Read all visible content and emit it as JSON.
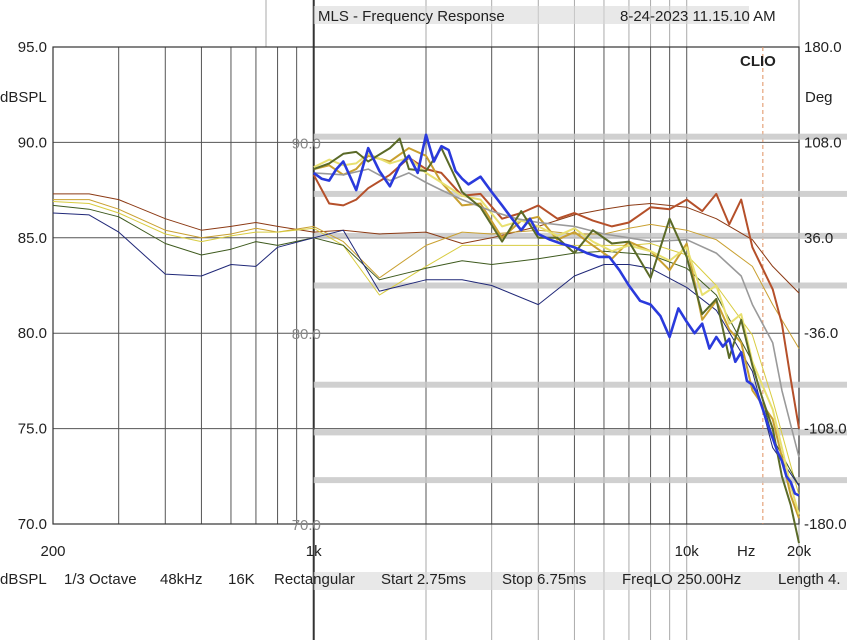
{
  "header": {
    "title": "MLS - Frequency Response",
    "timestamp": "8-24-2023 11.15.10 AM",
    "brand": "CLIO"
  },
  "footer": {
    "unit": "dBSPL",
    "smoothing": "1/3 Octave",
    "rate": "48kHz",
    "size": "16K",
    "window": "Rectangular",
    "start": "Start 2.75ms",
    "stop": "Stop 6.75ms",
    "freqlo": "FreqLO 250.00Hz",
    "length": "Length 4."
  },
  "colors": {
    "grid": "#555555",
    "band": "#c8c8c8",
    "red": "#b5502a",
    "darkred": "#8c3a14",
    "gold": "#c9a030",
    "lightyellow": "#e8e070",
    "yellow": "#d8cc40",
    "olive": "#5a6a28",
    "green": "#3e5a1e",
    "blue": "#2a3adc",
    "navy": "#202878",
    "gray": "#9a9a9a",
    "crosshair": "#e09060"
  },
  "chart_data": {
    "type": "line",
    "title": "MLS - Frequency Response",
    "xscale": "log",
    "xlim": [
      200,
      20000
    ],
    "ylim": [
      70,
      95
    ],
    "y2lim": [
      -180,
      180
    ],
    "ylabel": "dBSPL",
    "y2label": "Deg",
    "xunit": "Hz",
    "xticks": [
      {
        "v": 200,
        "label": "200"
      },
      {
        "v": 1000,
        "label": "1k"
      },
      {
        "v": 10000,
        "label": "10k"
      },
      {
        "v": 20000,
        "label": "20k"
      }
    ],
    "yticks": [
      {
        "v": 95,
        "label": "95.0"
      },
      {
        "v": 90,
        "label": "90.0"
      },
      {
        "v": 85,
        "label": "85.0"
      },
      {
        "v": 80,
        "label": "80.0"
      },
      {
        "v": 75,
        "label": "75.0"
      },
      {
        "v": 70,
        "label": "70.0"
      }
    ],
    "y2ticks": [
      {
        "v": 180,
        "label": "180.0"
      },
      {
        "v": 108,
        "label": "108.0"
      },
      {
        "v": 36,
        "label": "36.0"
      },
      {
        "v": -36,
        "label": "-36.0"
      },
      {
        "v": -108,
        "label": "-108.0"
      },
      {
        "v": -180,
        "label": "-180.0"
      }
    ],
    "grid": true,
    "inset": {
      "xlim": [
        1000,
        20000
      ],
      "labels": [
        {
          "v": 90,
          "label": "90.0"
        },
        {
          "v": 80,
          "label": "80.0"
        },
        {
          "v": 70,
          "label": "70.0"
        }
      ],
      "band_levels": [
        90.3,
        87.3,
        85.1,
        82.5,
        77.3,
        74.8,
        72.3
      ]
    },
    "series": [
      {
        "color": "darkred",
        "width": 1,
        "x": [
          200,
          250,
          300,
          400,
          500,
          600,
          700,
          800,
          1000,
          1200,
          1500,
          2000,
          2500,
          3000,
          4000,
          5000,
          6000,
          7000,
          8000,
          10000,
          12000,
          15000,
          17000,
          20000
        ],
        "y": [
          87.3,
          87.3,
          87.0,
          86.0,
          85.4,
          85.6,
          85.8,
          85.6,
          85.3,
          85.4,
          85.2,
          85.3,
          84.7,
          85.0,
          85.6,
          86.2,
          86.5,
          86.7,
          86.8,
          86.6,
          86.0,
          84.9,
          83.5,
          82.1
        ]
      },
      {
        "color": "gold",
        "width": 1,
        "x": [
          200,
          250,
          300,
          400,
          500,
          600,
          700,
          800,
          1000,
          1200,
          1500,
          2000,
          2500,
          3000,
          4000,
          5000,
          6000,
          7000,
          8000,
          10000,
          12000,
          15000,
          17000,
          20000
        ],
        "y": [
          87.0,
          87.0,
          86.5,
          85.4,
          85.0,
          85.2,
          85.5,
          85.3,
          85.6,
          84.8,
          82.9,
          84.6,
          85.3,
          85.2,
          85.4,
          85.2,
          85.2,
          85.5,
          85.7,
          85.4,
          84.9,
          83.5,
          81.5,
          79.2
        ]
      },
      {
        "color": "yellow",
        "width": 1,
        "x": [
          200,
          250,
          300,
          400,
          500,
          600,
          700,
          800,
          1000,
          1200,
          1500,
          2000,
          2500,
          3000,
          4000,
          5000,
          6000,
          7000,
          8000,
          10000,
          12000,
          15000,
          17000,
          20000
        ],
        "y": [
          86.9,
          86.8,
          86.3,
          85.2,
          84.8,
          85.1,
          85.3,
          85.3,
          85.5,
          84.6,
          82.0,
          83.5,
          84.6,
          84.6,
          84.6,
          84.6,
          84.6,
          84.6,
          84.7,
          84.1,
          82.5,
          79.9,
          76.5,
          71.5
        ]
      },
      {
        "color": "green",
        "width": 1,
        "x": [
          200,
          250,
          300,
          400,
          500,
          600,
          700,
          800,
          1000,
          1200,
          1500,
          2000,
          2500,
          3000,
          4000,
          5000,
          6000,
          7000,
          8000,
          10000,
          12000,
          15000,
          17000,
          20000
        ],
        "y": [
          86.7,
          86.5,
          86.1,
          84.7,
          84.1,
          84.4,
          84.8,
          84.6,
          85.0,
          84.6,
          82.8,
          83.4,
          83.8,
          83.6,
          83.9,
          84.2,
          84.3,
          84.2,
          84.1,
          83.4,
          82.0,
          78.5,
          74.5,
          72.0
        ]
      },
      {
        "color": "navy",
        "width": 1,
        "x": [
          200,
          250,
          300,
          400,
          500,
          600,
          700,
          800,
          1000,
          1200,
          1500,
          2000,
          2500,
          3000,
          4000,
          5000,
          6000,
          7000,
          8000,
          10000,
          12000,
          15000,
          17000,
          20000
        ],
        "y": [
          86.3,
          86.2,
          85.3,
          83.1,
          83.0,
          83.6,
          83.5,
          84.5,
          85.0,
          85.4,
          82.2,
          82.8,
          82.8,
          82.5,
          81.5,
          83.0,
          83.6,
          83.6,
          83.4,
          82.4,
          81.2,
          78.0,
          74.0,
          72.0
        ]
      },
      {
        "color": "red",
        "width": 2,
        "x": [
          1000,
          1100,
          1200,
          1300,
          1400,
          1600,
          1800,
          2000,
          2200,
          2500,
          2800,
          3200,
          3600,
          4000,
          4500,
          5000,
          5600,
          6300,
          7000,
          8000,
          9000,
          10000,
          11000,
          12000,
          13000,
          14000,
          15000,
          17000,
          18000,
          19000,
          20000
        ],
        "y": [
          88.3,
          86.8,
          86.7,
          87.0,
          87.6,
          88.3,
          89.2,
          88.6,
          88.4,
          87.2,
          87.3,
          86.0,
          86.3,
          86.7,
          86.0,
          86.3,
          85.9,
          85.6,
          85.8,
          86.6,
          86.5,
          87.0,
          86.4,
          87.3,
          85.7,
          87.0,
          84.5,
          82.3,
          80.5,
          77.6,
          75.0
        ]
      },
      {
        "color": "gold",
        "width": 2,
        "x": [
          1000,
          1100,
          1200,
          1300,
          1400,
          1600,
          1800,
          2000,
          2200,
          2500,
          2800,
          3200,
          3600,
          4000,
          4500,
          5000,
          5600,
          6300,
          7000,
          8000,
          9000,
          10000,
          11000,
          12000,
          13000,
          14000,
          15000,
          17000,
          18000,
          19000,
          20000
        ],
        "y": [
          88.6,
          88.8,
          88.3,
          88.6,
          89.3,
          89.0,
          89.7,
          89.3,
          87.9,
          86.7,
          86.8,
          85.0,
          85.9,
          86.1,
          84.9,
          85.3,
          84.6,
          83.9,
          84.8,
          84.3,
          83.3,
          84.7,
          80.7,
          81.7,
          80.2,
          79.5,
          77.0,
          75.5,
          73.5,
          71.5,
          70.3
        ]
      },
      {
        "color": "lightyellow",
        "width": 2,
        "x": [
          1000,
          1100,
          1200,
          1300,
          1400,
          1600,
          1800,
          2000,
          2200,
          2500,
          2800,
          3200,
          3600,
          4000,
          4500,
          5000,
          5600,
          6300,
          7000,
          8000,
          9000,
          10000,
          11000,
          12000,
          13000,
          14000,
          15000,
          17000,
          18000,
          19000,
          20000
        ],
        "y": [
          88.7,
          89.1,
          88.8,
          88.9,
          89.4,
          88.9,
          89.2,
          88.4,
          87.9,
          87.2,
          87.0,
          85.6,
          85.9,
          85.6,
          85.1,
          85.5,
          84.8,
          84.3,
          84.6,
          84.3,
          83.8,
          84.5,
          82.0,
          82.5,
          80.5,
          81.0,
          78.5,
          76.0,
          74.0,
          72.0,
          70.5
        ]
      },
      {
        "color": "gray",
        "width": 1.6,
        "x": [
          1000,
          1200,
          1400,
          1600,
          1800,
          2000,
          2200,
          2500,
          3000,
          3500,
          4000,
          5000,
          6000,
          7000,
          8000,
          10000,
          12000,
          14000,
          15000,
          17000,
          18000,
          20000
        ],
        "y": [
          88.4,
          88.3,
          88.6,
          88.0,
          88.4,
          87.9,
          87.5,
          87.0,
          86.4,
          86.0,
          85.8,
          85.6,
          85.2,
          85.0,
          84.8,
          84.9,
          84.2,
          83.0,
          81.5,
          79.5,
          77.0,
          73.5
        ]
      },
      {
        "color": "olive",
        "width": 2,
        "x": [
          1000,
          1100,
          1200,
          1300,
          1400,
          1600,
          1700,
          1800,
          2000,
          2200,
          2500,
          2800,
          3200,
          3600,
          4000,
          4500,
          5000,
          5600,
          6300,
          7000,
          8000,
          9000,
          10000,
          11000,
          12000,
          13000,
          14000,
          15000,
          16000,
          17000,
          18000,
          19000,
          20000
        ],
        "y": [
          88.6,
          88.9,
          89.4,
          89.5,
          89.0,
          89.7,
          90.2,
          88.6,
          88.5,
          89.7,
          87.4,
          86.6,
          84.8,
          86.4,
          85.0,
          85.0,
          84.2,
          85.4,
          84.7,
          84.8,
          82.9,
          86.0,
          84.0,
          81.0,
          81.8,
          78.7,
          80.7,
          78.3,
          76.5,
          75.0,
          72.5,
          71.0,
          69.0
        ]
      },
      {
        "color": "blue",
        "width": 2.6,
        "x": [
          1000,
          1050,
          1100,
          1150,
          1200,
          1300,
          1400,
          1500,
          1600,
          1700,
          1800,
          1900,
          2000,
          2100,
          2200,
          2300,
          2400,
          2500,
          2600,
          2800,
          3000,
          3200,
          3400,
          3600,
          3800,
          4000,
          4300,
          4600,
          5000,
          5400,
          5800,
          6200,
          6600,
          7000,
          7500,
          8000,
          8500,
          9000,
          9500,
          10000,
          10500,
          11000,
          11500,
          12000,
          12500,
          13000,
          13500,
          14000,
          14500,
          15000,
          15500,
          16000,
          16500,
          17000,
          17500,
          18000,
          18500,
          19000,
          19500,
          20000
        ],
        "y": [
          88.4,
          88.1,
          88.0,
          88.6,
          89.0,
          87.5,
          89.7,
          88.5,
          87.7,
          88.8,
          89.3,
          88.4,
          90.4,
          89.0,
          89.8,
          89.6,
          88.5,
          88.1,
          87.8,
          88.2,
          87.4,
          86.7,
          86.0,
          85.4,
          86.0,
          85.2,
          84.9,
          84.7,
          84.5,
          84.2,
          84.0,
          84.0,
          83.3,
          82.5,
          81.7,
          81.5,
          80.9,
          79.8,
          81.3,
          80.6,
          80.0,
          80.5,
          79.2,
          79.8,
          79.3,
          79.7,
          78.5,
          79.0,
          77.5,
          77.3,
          76.8,
          76.0,
          75.2,
          74.5,
          73.8,
          73.3,
          72.5,
          72.2,
          71.6,
          71.5
        ]
      }
    ]
  }
}
